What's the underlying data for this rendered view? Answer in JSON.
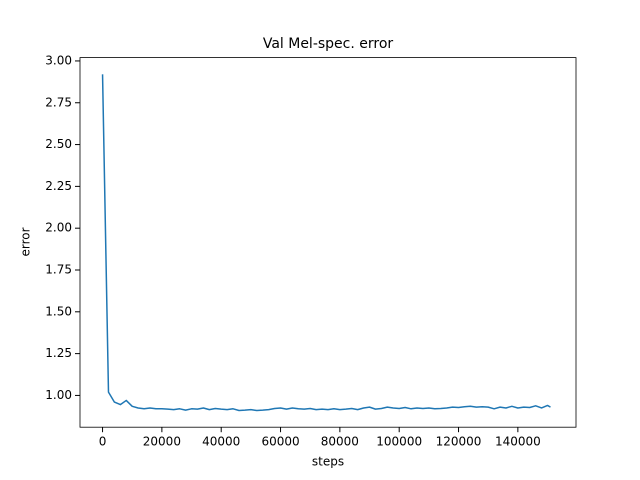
{
  "chart_data": {
    "type": "line",
    "title": "Val Mel-spec. error",
    "x_label": "steps",
    "y_label": "error",
    "x": [
      0,
      2000,
      4000,
      6000,
      8000,
      10000,
      12000,
      14000,
      16000,
      18000,
      20000,
      22000,
      24000,
      26000,
      28000,
      30000,
      32000,
      34000,
      36000,
      38000,
      40000,
      42000,
      44000,
      46000,
      48000,
      50000,
      52000,
      54000,
      56000,
      58000,
      60000,
      62000,
      64000,
      66000,
      68000,
      70000,
      72000,
      74000,
      76000,
      78000,
      80000,
      82000,
      84000,
      86000,
      88000,
      90000,
      92000,
      94000,
      96000,
      98000,
      100000,
      102000,
      104000,
      106000,
      108000,
      110000,
      112000,
      114000,
      116000,
      118000,
      120000,
      122000,
      124000,
      126000,
      128000,
      130000,
      132000,
      134000,
      136000,
      138000,
      140000,
      142000,
      144000,
      146000,
      148000,
      150000,
      151000
    ],
    "series": [
      {
        "name": "val",
        "color": "#1f77b4",
        "values": [
          2.92,
          1.02,
          0.96,
          0.945,
          0.97,
          0.935,
          0.925,
          0.92,
          0.925,
          0.92,
          0.92,
          0.918,
          0.915,
          0.92,
          0.912,
          0.92,
          0.918,
          0.925,
          0.915,
          0.922,
          0.918,
          0.915,
          0.92,
          0.91,
          0.912,
          0.915,
          0.91,
          0.912,
          0.915,
          0.922,
          0.925,
          0.918,
          0.925,
          0.92,
          0.918,
          0.922,
          0.915,
          0.918,
          0.915,
          0.92,
          0.915,
          0.918,
          0.922,
          0.915,
          0.925,
          0.93,
          0.918,
          0.922,
          0.93,
          0.925,
          0.922,
          0.928,
          0.92,
          0.925,
          0.922,
          0.925,
          0.92,
          0.922,
          0.925,
          0.93,
          0.928,
          0.932,
          0.935,
          0.93,
          0.932,
          0.93,
          0.92,
          0.93,
          0.925,
          0.935,
          0.925,
          0.93,
          0.928,
          0.938,
          0.925,
          0.94,
          0.93
        ]
      }
    ],
    "xlim": [
      -7600,
      159600
    ],
    "ylim": [
      0.81,
      3.02
    ],
    "xticks": [
      0,
      20000,
      40000,
      60000,
      80000,
      100000,
      120000,
      140000
    ],
    "yticks": [
      {
        "value": 1.0,
        "label": "1.00"
      },
      {
        "value": 1.25,
        "label": "1.25"
      },
      {
        "value": 1.5,
        "label": "1.50"
      },
      {
        "value": 1.75,
        "label": "1.75"
      },
      {
        "value": 2.0,
        "label": "2.00"
      },
      {
        "value": 2.25,
        "label": "2.25"
      },
      {
        "value": 2.5,
        "label": "2.50"
      },
      {
        "value": 2.75,
        "label": "2.75"
      },
      {
        "value": 3.0,
        "label": "3.00"
      }
    ]
  }
}
